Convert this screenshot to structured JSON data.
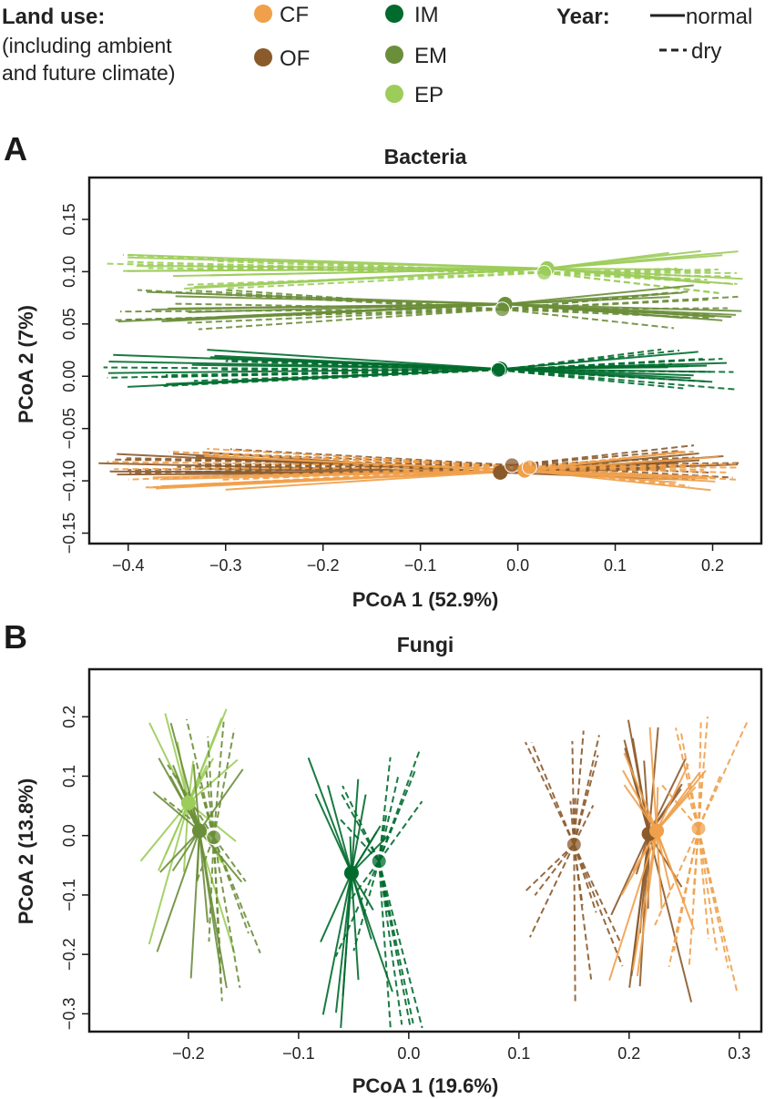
{
  "legend": {
    "land_use_title": "Land use:",
    "land_use_subtitle_1": "(including ambient",
    "land_use_subtitle_2": "and future climate)",
    "year_title": "Year:",
    "groups": [
      {
        "key": "CF",
        "label": "CF",
        "color": "#f0a04b"
      },
      {
        "key": "OF",
        "label": "OF",
        "color": "#8b5a2b"
      },
      {
        "key": "IM",
        "label": "IM",
        "color": "#006b2d"
      },
      {
        "key": "EM",
        "label": "EM",
        "color": "#6b8e3a"
      },
      {
        "key": "EP",
        "label": "EP",
        "color": "#9ccc5a"
      }
    ],
    "year_normal": "normal",
    "year_dry": "dry"
  },
  "chart_data": [
    {
      "panel": "A",
      "type": "scatter",
      "title": "Bacteria",
      "xlabel": "PCoA 1 (52.9%)",
      "ylabel": "PCoA 2 (7%)",
      "xlim": [
        -0.44,
        0.25
      ],
      "ylim": [
        -0.16,
        0.19
      ],
      "xticks": [
        -0.4,
        -0.3,
        -0.2,
        -0.1,
        0.0,
        0.1,
        0.2
      ],
      "xtick_labels": [
        "−0.4",
        "−0.3",
        "−0.2",
        "−0.1",
        "0.0",
        "0.1",
        "0.2"
      ],
      "yticks": [
        -0.15,
        -0.1,
        -0.05,
        0.0,
        0.05,
        0.1,
        0.15
      ],
      "ytick_labels": [
        "−0.15",
        "−0.10",
        "−0.05",
        "0.00",
        "0.05",
        "0.10",
        "0.15"
      ],
      "centroids": [
        {
          "group": "EP",
          "year": "normal",
          "x": 0.03,
          "y": 0.103
        },
        {
          "group": "EP",
          "year": "dry",
          "x": 0.027,
          "y": 0.099
        },
        {
          "group": "EM",
          "year": "normal",
          "x": -0.013,
          "y": 0.069
        },
        {
          "group": "EM",
          "year": "dry",
          "x": -0.016,
          "y": 0.064
        },
        {
          "group": "IM",
          "year": "normal",
          "x": -0.018,
          "y": 0.007
        },
        {
          "group": "IM",
          "year": "dry",
          "x": -0.02,
          "y": 0.006
        },
        {
          "group": "OF",
          "year": "normal",
          "x": -0.018,
          "y": -0.092
        },
        {
          "group": "OF",
          "year": "dry",
          "x": -0.006,
          "y": -0.085
        },
        {
          "group": "CF",
          "year": "normal",
          "x": 0.007,
          "y": -0.09
        },
        {
          "group": "CF",
          "year": "dry",
          "x": 0.012,
          "y": -0.087
        }
      ]
    },
    {
      "panel": "B",
      "type": "scatter",
      "title": "Fungi",
      "xlabel": "PCoA 1 (19.6%)",
      "ylabel": "PCoA 2 (13.8%)",
      "xlim": [
        -0.29,
        0.32
      ],
      "ylim": [
        -0.33,
        0.28
      ],
      "xticks": [
        -0.2,
        -0.1,
        0.0,
        0.1,
        0.2,
        0.3
      ],
      "xtick_labels": [
        "−0.2",
        "−0.1",
        "0.0",
        "0.1",
        "0.2",
        "0.3"
      ],
      "yticks": [
        -0.3,
        -0.2,
        -0.1,
        0.0,
        0.1,
        0.2
      ],
      "ytick_labels": [
        "−0.3",
        "−0.2",
        "−0.1",
        "0.0",
        "0.1",
        "0.2"
      ],
      "centroids": [
        {
          "group": "EP",
          "year": "normal",
          "x": -0.2,
          "y": 0.055
        },
        {
          "group": "EM",
          "year": "normal",
          "x": -0.19,
          "y": 0.008
        },
        {
          "group": "EM",
          "year": "dry",
          "x": -0.177,
          "y": -0.003
        },
        {
          "group": "IM",
          "year": "normal",
          "x": -0.052,
          "y": -0.063
        },
        {
          "group": "IM",
          "year": "dry",
          "x": -0.027,
          "y": -0.043
        },
        {
          "group": "OF",
          "year": "dry",
          "x": 0.15,
          "y": -0.015
        },
        {
          "group": "OF",
          "year": "normal",
          "x": 0.218,
          "y": 0.003
        },
        {
          "group": "CF",
          "year": "normal",
          "x": 0.225,
          "y": 0.008
        },
        {
          "group": "CF",
          "year": "dry",
          "x": 0.263,
          "y": 0.012
        }
      ]
    }
  ]
}
